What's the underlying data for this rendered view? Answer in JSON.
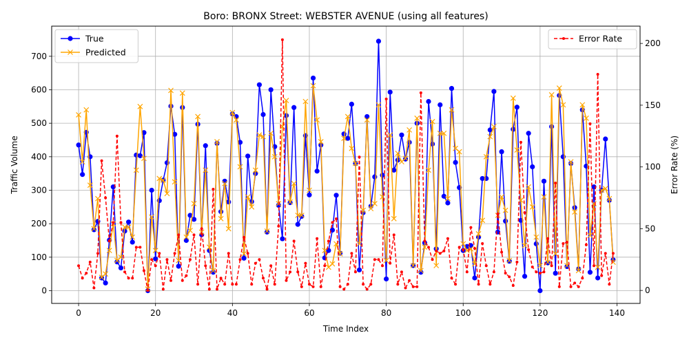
{
  "chart_data": {
    "type": "line",
    "title": "Boro: BRONX Street: WEBSTER AVENUE (using all features)",
    "xlabel": "Time Index",
    "ylabel": "Traffic Volume",
    "y2label": "Error Rate (%)",
    "xlim": [
      -7,
      146
    ],
    "ylim": [
      -38,
      790
    ],
    "y2lim": [
      -10.5,
      214
    ],
    "xticks": [
      0,
      20,
      40,
      60,
      80,
      100,
      120,
      140
    ],
    "yticks": [
      0,
      100,
      200,
      300,
      400,
      500,
      600,
      700
    ],
    "y2ticks": [
      0,
      50,
      100,
      150,
      200
    ],
    "grid": true,
    "legend_left_position": "upper-left",
    "legend_right_position": "upper-right",
    "series": [
      {
        "name": "True",
        "axis": "left",
        "color": "#0000ff",
        "marker": "circle",
        "values": [
          435,
          347,
          473,
          400,
          182,
          207,
          38,
          23,
          151,
          310,
          86,
          68,
          178,
          205,
          145,
          405,
          403,
          472,
          0,
          300,
          95,
          269,
          330,
          382,
          551,
          467,
          73,
          547,
          150,
          225,
          213,
          497,
          167,
          433,
          120,
          55,
          440,
          236,
          327,
          265,
          528,
          520,
          443,
          97,
          402,
          266,
          350,
          615,
          526,
          175,
          600,
          430,
          255,
          155,
          523,
          263,
          547,
          198,
          222,
          463,
          286,
          635,
          357,
          435,
          98,
          120,
          181,
          285,
          112,
          468,
          455,
          557,
          380,
          62,
          233,
          520,
          252,
          340,
          745,
          345,
          35,
          593,
          360,
          390,
          465,
          393,
          443,
          75,
          500,
          55,
          143,
          565,
          438,
          125,
          555,
          282,
          262,
          604,
          383,
          308,
          120,
          132,
          135,
          38,
          160,
          335,
          335,
          480,
          595,
          175,
          415,
          208,
          88,
          482,
          548,
          210,
          43,
          470,
          370,
          140,
          0,
          327,
          83,
          490,
          52,
          583,
          400,
          72,
          380,
          248,
          65,
          540,
          372,
          55,
          310,
          38,
          300,
          453,
          270,
          92
        ]
      },
      {
        "name": "Predicted",
        "axis": "left",
        "color": "#ffa500",
        "marker": "x",
        "values": [
          525,
          385,
          540,
          315,
          185,
          275,
          40,
          50,
          120,
          200,
          90,
          100,
          190,
          190,
          160,
          360,
          550,
          395,
          5,
          220,
          120,
          335,
          330,
          290,
          598,
          325,
          90,
          590,
          160,
          180,
          260,
          520,
          175,
          360,
          130,
          60,
          445,
          215,
          320,
          185,
          532,
          510,
          370,
          110,
          280,
          250,
          360,
          465,
          460,
          178,
          470,
          400,
          260,
          490,
          568,
          265,
          320,
          225,
          225,
          565,
          300,
          612,
          510,
          445,
          120,
          70,
          80,
          140,
          110,
          455,
          520,
          425,
          380,
          140,
          240,
          510,
          245,
          260,
          555,
          280,
          90,
          465,
          215,
          410,
          385,
          395,
          480,
          75,
          515,
          60,
          130,
          360,
          505,
          75,
          470,
          470,
          275,
          540,
          425,
          415,
          140,
          120,
          125,
          80,
          170,
          210,
          400,
          460,
          490,
          225,
          280,
          240,
          90,
          575,
          420,
          270,
          135,
          310,
          250,
          160,
          75,
          280,
          85,
          585,
          110,
          605,
          555,
          75,
          385,
          235,
          60,
          555,
          515,
          165,
          260,
          70,
          300,
          305,
          275,
          85
        ]
      },
      {
        "name": "Error Rate",
        "axis": "right",
        "color": "#ff0000",
        "marker": "dot",
        "dashed": true,
        "values": [
          20,
          10,
          14,
          23,
          2,
          30,
          105,
          75,
          40,
          55,
          125,
          55,
          15,
          10,
          10,
          35,
          35,
          16,
          0,
          25,
          20,
          30,
          1,
          25,
          8,
          30,
          45,
          8,
          12,
          25,
          45,
          5,
          50,
          20,
          1,
          82,
          1,
          10,
          5,
          30,
          5,
          5,
          25,
          43,
          30,
          5,
          22,
          25,
          10,
          1,
          20,
          5,
          52,
          203,
          8,
          15,
          40,
          15,
          3,
          22,
          5,
          3,
          42,
          3,
          20,
          40,
          55,
          58,
          3,
          1,
          5,
          30,
          15,
          108,
          5,
          1,
          5,
          25,
          25,
          20,
          155,
          22,
          45,
          5,
          15,
          2,
          8,
          3,
          3,
          160,
          40,
          35,
          25,
          32,
          30,
          32,
          42,
          10,
          5,
          35,
          33,
          15,
          51,
          34,
          5,
          38,
          20,
          5,
          15,
          62,
          31,
          14,
          11,
          4,
          23,
          120,
          63,
          33,
          19,
          15,
          14,
          15,
          42,
          20,
          87,
          3,
          38,
          39,
          3,
          6,
          3,
          10,
          37,
          135,
          20,
          175,
          12,
          30,
          5,
          30
        ]
      }
    ]
  }
}
